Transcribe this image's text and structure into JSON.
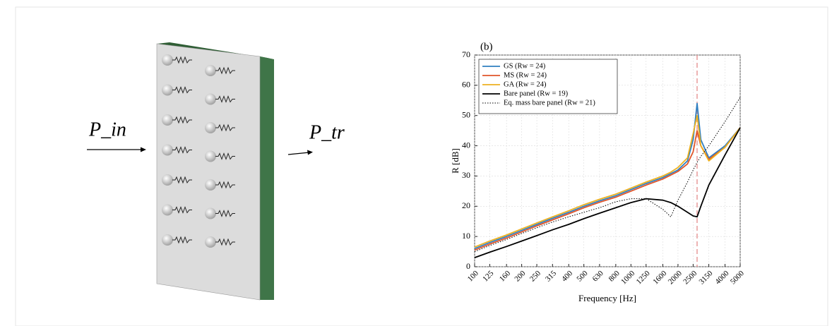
{
  "diagram": {
    "incident_label": "P_in",
    "transmitted_label": "P_tr"
  },
  "chart_data": {
    "type": "line",
    "panel_label": "(b)",
    "ylabel": "R [dB]",
    "xlabel": "Frequency [Hz]",
    "xscale": "log",
    "xlim": [
      100,
      5000
    ],
    "xticks": [
      100,
      125,
      160,
      200,
      250,
      315,
      400,
      500,
      630,
      800,
      1000,
      1250,
      1600,
      2000,
      2500,
      3150,
      4000,
      5000
    ],
    "ylim": [
      0,
      70
    ],
    "yticks": [
      0,
      10,
      20,
      30,
      40,
      50,
      60,
      70
    ],
    "grid": true,
    "legend": "upper left",
    "vline_x": 2650,
    "vline_color": "#e89a9a",
    "x": [
      100,
      125,
      160,
      200,
      250,
      315,
      400,
      500,
      630,
      800,
      1000,
      1250,
      1600,
      1800,
      2000,
      2300,
      2500,
      2650,
      2800,
      3150,
      4000,
      5000
    ],
    "series": [
      {
        "name": "GS (Rw = 24)",
        "color": "#2f7fc1",
        "linestyle": "solid",
        "values": [
          6,
          8,
          10,
          12,
          14,
          16,
          18,
          20,
          21.8,
          23.5,
          25.5,
          27.5,
          29.5,
          30.8,
          32,
          35,
          42,
          54,
          42,
          36,
          40,
          46
        ]
      },
      {
        "name": "MS (Rw = 24)",
        "color": "#e0552a",
        "linestyle": "solid",
        "values": [
          5.5,
          7.5,
          9.5,
          11.5,
          13.5,
          15.5,
          17.5,
          19.5,
          21.3,
          23,
          25,
          27,
          29,
          30.3,
          31.5,
          34,
          38,
          45,
          40,
          35.5,
          39.5,
          46
        ]
      },
      {
        "name": "GA (Rw = 24)",
        "color": "#edb120",
        "linestyle": "solid",
        "values": [
          6.5,
          8.5,
          10.5,
          12.5,
          14.5,
          16.5,
          18.5,
          20.5,
          22.3,
          24,
          26,
          28,
          30,
          31.3,
          32.8,
          36,
          44,
          50,
          40,
          35,
          39.5,
          46
        ]
      },
      {
        "name": "Bare panel (Rw = 19)",
        "color": "#000000",
        "linestyle": "solid",
        "values": [
          3,
          4.8,
          6.7,
          8.5,
          10.3,
          12.2,
          14,
          15.9,
          17.7,
          19.5,
          21.2,
          22.5,
          22,
          21.2,
          20,
          18,
          16.8,
          16.5,
          20,
          27,
          37,
          46
        ]
      },
      {
        "name": "Eq. mass bare panel (Rw = 21)",
        "color": "#000000",
        "linestyle": "dotted",
        "values": [
          5,
          7,
          9,
          11,
          12.9,
          14.8,
          16.5,
          18,
          19.5,
          21.5,
          22.5,
          22.5,
          19,
          16.5,
          22,
          28,
          32,
          34.5,
          36.5,
          40,
          48,
          56
        ]
      }
    ]
  }
}
